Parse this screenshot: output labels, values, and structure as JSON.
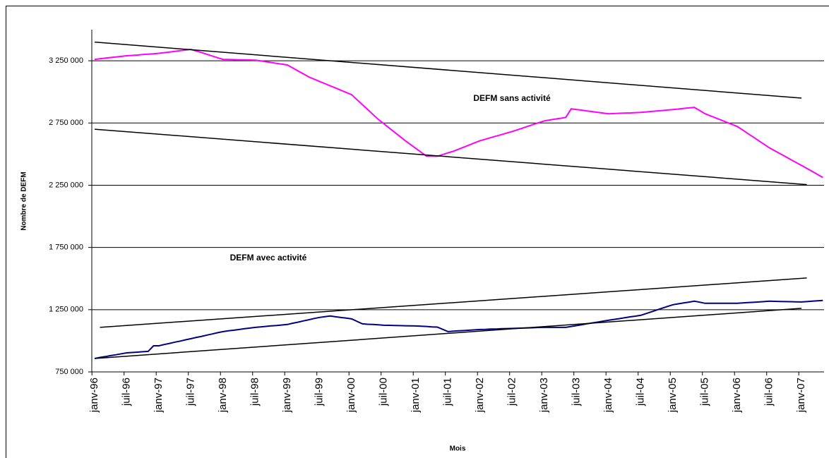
{
  "chart_data": {
    "type": "line",
    "xlabel": "Mois",
    "ylabel": "Nombre de DEFM",
    "categories": [
      "janv-96",
      null,
      null,
      null,
      null,
      null,
      "juil-96",
      null,
      null,
      null,
      null,
      null,
      "janv-97",
      null,
      null,
      null,
      null,
      null,
      "juil-97",
      null,
      null,
      null,
      null,
      null,
      "janv-98",
      null,
      null,
      null,
      null,
      null,
      "juil-98",
      null,
      null,
      null,
      null,
      null,
      "janv-99",
      null,
      null,
      null,
      null,
      null,
      "juil-99",
      null,
      null,
      null,
      null,
      null,
      "janv-00",
      null,
      null,
      null,
      null,
      null,
      "juil-00",
      null,
      null,
      null,
      null,
      null,
      "janv-01",
      null,
      null,
      null,
      null,
      null,
      "juil-01",
      null,
      null,
      null,
      null,
      null,
      "janv-02",
      null,
      null,
      null,
      null,
      null,
      "juil-02",
      null,
      null,
      null,
      null,
      null,
      "janv-03",
      null,
      null,
      null,
      null,
      null,
      "juil-03",
      null,
      null,
      null,
      null,
      null,
      "janv-04",
      null,
      null,
      null,
      null,
      null,
      "juil-04",
      null,
      null,
      null,
      null,
      null,
      "janv-05",
      null,
      null,
      null,
      null,
      null,
      "juil-05",
      null,
      null,
      null,
      null,
      null,
      "janv-06",
      null,
      null,
      null,
      null,
      null,
      "juil-06",
      null,
      null,
      null,
      null,
      null,
      "janv-07",
      null,
      null,
      null,
      null
    ],
    "series": [
      {
        "name": "DEFM sans activité",
        "color": "#ff00ff",
        "values": [
          3261000,
          3266000,
          3271000,
          3276000,
          3280000,
          3285000,
          3290000,
          3293000,
          3296000,
          3300000,
          3303000,
          3306000,
          3310000,
          3315000,
          3320000,
          3326000,
          3331000,
          3336000,
          3341000,
          3328000,
          3315000,
          3301000,
          3288000,
          3274000,
          3261000,
          3260000,
          3259000,
          3258000,
          3257000,
          3256000,
          3255000,
          3249000,
          3242000,
          3236000,
          3229000,
          3223000,
          3216000,
          3192000,
          3168000,
          3144000,
          3120000,
          3102000,
          3084000,
          3066000,
          3048000,
          3031000,
          3013000,
          2995000,
          2977000,
          2937000,
          2897000,
          2858000,
          2818000,
          2778000,
          2744000,
          2710000,
          2676000,
          2642000,
          2608000,
          2577000,
          2546000,
          2514000,
          2483000,
          2483000,
          2483000,
          2496000,
          2510000,
          2523000,
          2540000,
          2557000,
          2574000,
          2591000,
          2608000,
          2620000,
          2633000,
          2645000,
          2657000,
          2670000,
          2682000,
          2696000,
          2710000,
          2725000,
          2739000,
          2753000,
          2767000,
          2774000,
          2781000,
          2788000,
          2795000,
          2864000,
          2858000,
          2853000,
          2847000,
          2841000,
          2835000,
          2830000,
          2824000,
          2826000,
          2828000,
          2830000,
          2831000,
          2833000,
          2835000,
          2839000,
          2843000,
          2847000,
          2850000,
          2854000,
          2858000,
          2862000,
          2867000,
          2871000,
          2875000,
          2850000,
          2824000,
          2807000,
          2790000,
          2773000,
          2756000,
          2739000,
          2722000,
          2694000,
          2665000,
          2637000,
          2608000,
          2580000,
          2551000,
          2527000,
          2504000,
          2480000,
          2456000,
          2433000,
          2409000,
          2385000,
          2361000,
          2336000,
          2312000
        ]
      },
      {
        "name": "DEFM avec activité",
        "color": "#000080",
        "values": [
          858000,
          866000,
          873000,
          881000,
          888000,
          896000,
          903000,
          906000,
          909000,
          912000,
          915000,
          960000,
          960000,
          970000,
          979000,
          989000,
          998000,
          1008000,
          1017000,
          1027000,
          1036000,
          1046000,
          1055000,
          1065000,
          1074000,
          1080000,
          1085000,
          1091000,
          1097000,
          1102000,
          1108000,
          1112000,
          1116000,
          1120000,
          1123000,
          1127000,
          1131000,
          1141000,
          1150000,
          1160000,
          1169000,
          1179000,
          1188000,
          1194000,
          1199000,
          1193000,
          1187000,
          1182000,
          1176000,
          1156000,
          1136000,
          1133000,
          1131000,
          1128000,
          1125000,
          1124000,
          1123000,
          1122000,
          1121000,
          1120000,
          1119000,
          1117000,
          1115000,
          1112000,
          1110000,
          1092000,
          1074000,
          1077000,
          1080000,
          1082000,
          1085000,
          1088000,
          1091000,
          1092000,
          1094000,
          1095000,
          1097000,
          1098000,
          1099000,
          1101000,
          1102000,
          1104000,
          1105000,
          1107000,
          1108000,
          1108000,
          1108000,
          1108000,
          1108000,
          1115000,
          1122000,
          1129000,
          1137000,
          1144000,
          1151000,
          1158000,
          1165000,
          1172000,
          1178000,
          1185000,
          1192000,
          1198000,
          1205000,
          1219000,
          1233000,
          1248000,
          1262000,
          1276000,
          1290000,
          1297000,
          1304000,
          1311000,
          1318000,
          1310000,
          1301000,
          1301000,
          1301000,
          1301000,
          1301000,
          1301000,
          1301000,
          1304000,
          1307000,
          1309000,
          1312000,
          1315000,
          1318000,
          1317000,
          1316000,
          1315000,
          1314000,
          1313000,
          1312000,
          1315000,
          1318000,
          1321000,
          1324000
        ]
      }
    ],
    "trendlines": [
      {
        "color": "#000000",
        "x": [
          0,
          132
        ],
        "values": [
          3400000,
          2950000
        ]
      },
      {
        "color": "#000000",
        "x": [
          0,
          133
        ],
        "values": [
          2700000,
          2255000
        ]
      },
      {
        "color": "#000000",
        "x": [
          1,
          133
        ],
        "values": [
          1108000,
          1505000
        ]
      },
      {
        "color": "#000000",
        "x": [
          0,
          132
        ],
        "values": [
          858000,
          1261000
        ]
      }
    ],
    "ylim": [
      750000,
      3500000
    ],
    "yticks": [
      {
        "value": 750000,
        "label": "750 000"
      },
      {
        "value": 1250000,
        "label": "1 250 000"
      },
      {
        "value": 1750000,
        "label": "1 750 000"
      },
      {
        "value": 2250000,
        "label": "2 250 000"
      },
      {
        "value": 2750000,
        "label": "2 750 000"
      },
      {
        "value": 3250000,
        "label": "3 250 000"
      }
    ],
    "grid": true
  }
}
